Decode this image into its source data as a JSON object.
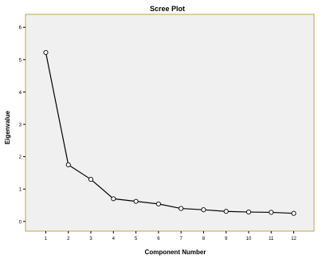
{
  "chart_data": {
    "type": "line",
    "title": "Scree Plot",
    "xlabel": "Component Number",
    "ylabel": "Eigenvalue",
    "x": [
      1,
      2,
      3,
      4,
      5,
      6,
      7,
      8,
      9,
      10,
      11,
      12
    ],
    "xticks": [
      "1",
      "2",
      "3",
      "4",
      "5",
      "6",
      "7",
      "8",
      "9",
      "10",
      "11",
      "12"
    ],
    "yticks": [
      "0",
      "1",
      "2",
      "3",
      "4",
      "5",
      "6"
    ],
    "xlim": [
      0.1,
      12.9
    ],
    "ylim": [
      -0.3,
      6.4
    ],
    "series": [
      {
        "values": [
          5.22,
          1.75,
          1.3,
          0.7,
          0.62,
          0.54,
          0.4,
          0.36,
          0.31,
          0.29,
          0.28,
          0.25
        ]
      }
    ],
    "grid": false,
    "legend": "none"
  },
  "colors": {
    "background": "#ffffff",
    "plot_area": "#f0f0f0",
    "plot_border": "#c2a54a",
    "line": "#000000",
    "marker_fill": "#ffffff",
    "axis": "#000000",
    "text": "#000000"
  }
}
